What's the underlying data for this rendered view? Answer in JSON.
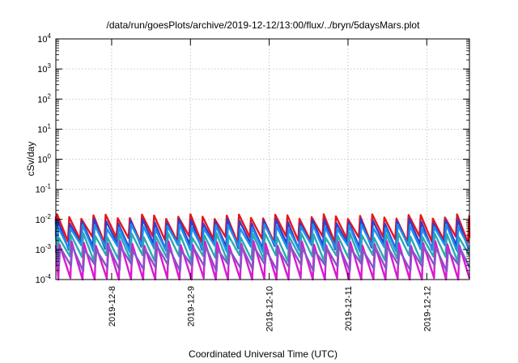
{
  "chart_data": {
    "type": "line",
    "title": "/data/run/goesPlots/archive/2019-12-12/13:00/flux/../bryn/5daysMars.plot",
    "xlabel": "Coordinated Universal Time (UTC)",
    "ylabel": "cSv/day",
    "y_scale": "log",
    "ylim": [
      0.0001,
      10000
    ],
    "y_ticks": [
      {
        "base": "10",
        "exp": "-4"
      },
      {
        "base": "10",
        "exp": "-3"
      },
      {
        "base": "10",
        "exp": "-2"
      },
      {
        "base": "10",
        "exp": "-1"
      },
      {
        "base": "10",
        "exp": "0"
      },
      {
        "base": "10",
        "exp": "1"
      },
      {
        "base": "10",
        "exp": "2"
      },
      {
        "base": "10",
        "exp": "3"
      },
      {
        "base": "10",
        "exp": "4"
      }
    ],
    "xlim": [
      "2019-12-07 07:00",
      "2019-12-12 13:00"
    ],
    "x_ticks": [
      "2019-12-8",
      "2019-12-9",
      "2019-12-10",
      "2019-12-11",
      "2019-12-12"
    ],
    "grid": true,
    "cycles_per_day": 6.5,
    "series": [
      {
        "color": "#e8141c",
        "peak": 0.0125,
        "trough": 0.0022
      },
      {
        "color": "#2f3fd0",
        "peak": 0.0088,
        "trough": 0.0013
      },
      {
        "color": "#1e8ff0",
        "peak": 0.0058,
        "trough": 0.0011
      },
      {
        "color": "#2aaab0",
        "peak": 0.003,
        "trough": 0.00052
      },
      {
        "color": "#d81bd0",
        "peak": 0.0016,
        "trough": 9e-05
      },
      {
        "color": "#8a52c8",
        "peak": 0.0011,
        "trough": 0.00025
      }
    ]
  }
}
